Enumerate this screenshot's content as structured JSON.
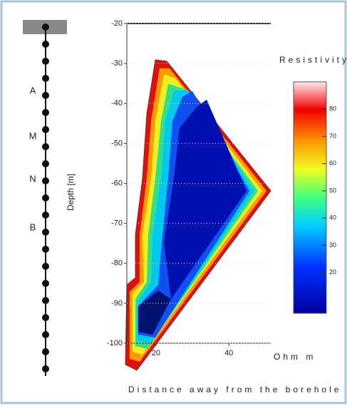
{
  "chart_data": {
    "type": "contour",
    "xlabel": "Distance away from the borehole",
    "ylabel": "Depth [m]",
    "xlim": [
      12,
      51.5
    ],
    "xticks": [
      20,
      40
    ],
    "ylim": [
      -100,
      -20
    ],
    "yticks": [
      -20,
      -30,
      -40,
      -50,
      -60,
      -70,
      -80,
      -90,
      -100
    ],
    "colorbar": {
      "title": "Resistivity",
      "unit": "Ohm m",
      "lim": [
        5,
        90
      ],
      "ticks": [
        20,
        30,
        40,
        50,
        60,
        70,
        80
      ]
    },
    "electrode_labels": [
      "A",
      "M",
      "N",
      "B"
    ]
  }
}
